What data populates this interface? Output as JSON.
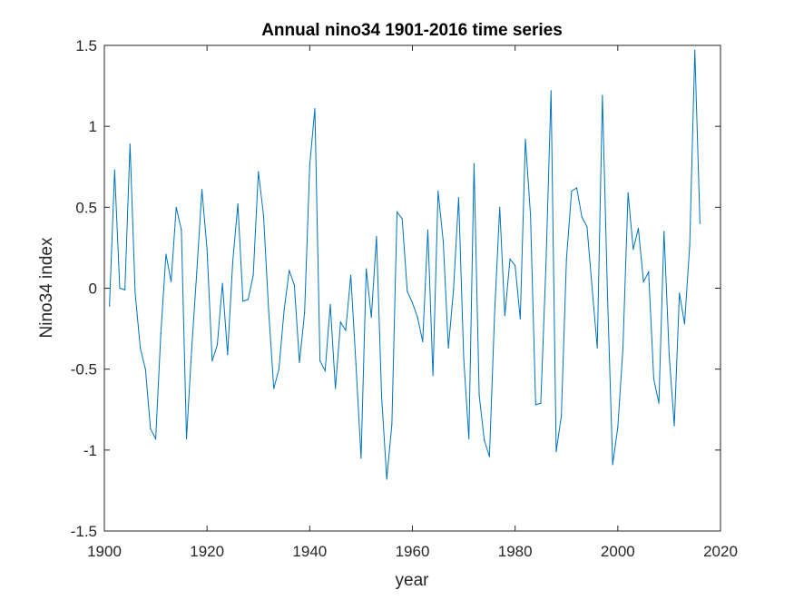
{
  "chart_data": {
    "type": "line",
    "title": "Annual nino34 1901-2016 time series",
    "xlabel": "year",
    "ylabel": "Nino34 index",
    "xlim": [
      1900,
      2020
    ],
    "ylim": [
      -1.5,
      1.5
    ],
    "xticks": [
      "1900",
      "1920",
      "1940",
      "1960",
      "1980",
      "2000",
      "2020"
    ],
    "yticks": [
      "-1.5",
      "-1",
      "-0.5",
      "0",
      "0.5",
      "1",
      "1.5"
    ],
    "grid": false,
    "legend": "none",
    "line_color": "#0072BD",
    "x_start": 1901,
    "series": [
      {
        "values": [
          -0.11,
          0.73,
          0.0,
          -0.01,
          0.89,
          -0.03,
          -0.37,
          -0.5,
          -0.87,
          -0.93,
          -0.28,
          0.21,
          0.04,
          0.5,
          0.36,
          -0.93,
          -0.38,
          0.1,
          0.61,
          0.24,
          -0.45,
          -0.35,
          0.03,
          -0.41,
          0.16,
          0.52,
          -0.08,
          -0.07,
          0.08,
          0.72,
          0.45,
          -0.14,
          -0.62,
          -0.5,
          -0.14,
          0.11,
          0.02,
          -0.46,
          -0.15,
          0.76,
          1.11,
          -0.45,
          -0.51,
          -0.1,
          -0.62,
          -0.21,
          -0.26,
          0.08,
          -0.47,
          -1.05,
          0.12,
          -0.18,
          0.32,
          -0.67,
          -1.18,
          -0.84,
          0.47,
          0.43,
          -0.02,
          -0.09,
          -0.18,
          -0.33,
          0.36,
          -0.54,
          0.6,
          0.29,
          -0.37,
          -0.01,
          0.56,
          -0.44,
          -0.93,
          0.77,
          -0.66,
          -0.94,
          -1.04,
          -0.16,
          0.5,
          -0.17,
          0.18,
          0.14,
          -0.19,
          0.92,
          0.45,
          -0.72,
          -0.71,
          0.14,
          1.22,
          -1.01,
          -0.79,
          0.18,
          0.6,
          0.62,
          0.44,
          0.38,
          0.0,
          -0.37,
          1.19,
          -0.05,
          -1.09,
          -0.86,
          -0.37,
          0.59,
          0.24,
          0.37,
          0.04,
          0.1,
          -0.56,
          -0.71,
          0.35,
          -0.41,
          -0.85,
          -0.03,
          -0.22,
          0.26,
          1.47,
          0.4
        ]
      }
    ]
  }
}
